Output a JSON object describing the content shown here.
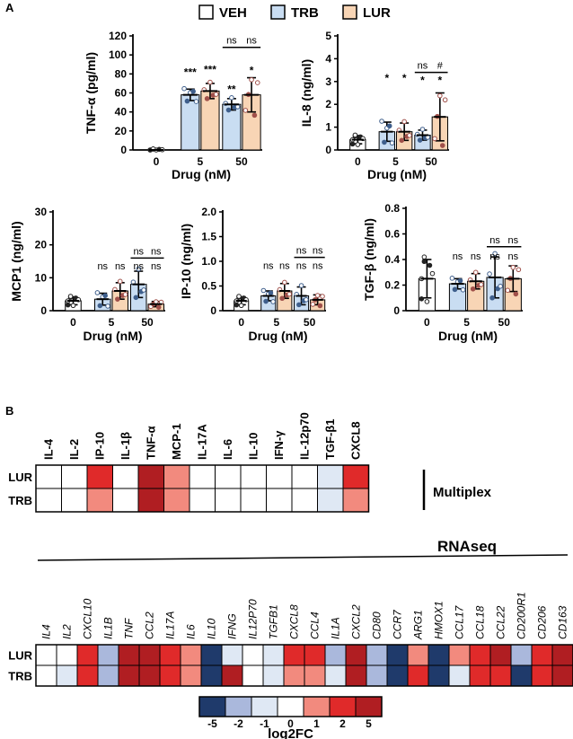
{
  "panel_labels": {
    "a": "A",
    "b": "B"
  },
  "legend": [
    {
      "name": "VEH",
      "color": "#ffffff"
    },
    {
      "name": "TRB",
      "color": "#c9ddf2"
    },
    {
      "name": "LUR",
      "color": "#f8d5b5"
    }
  ],
  "colors": {
    "veh": "#ffffff",
    "trb": "#c9ddf2",
    "lur": "#f8d5b5",
    "dot_trb": "#3f5f8c",
    "dot_lur": "#a0504a"
  },
  "chart_data": [
    {
      "type": "bar",
      "id": "tnf",
      "ylabel": "TNF-α (pg/ml)",
      "xlabel": "Drug (nM)",
      "categories": [
        "0",
        "5",
        "50"
      ],
      "ylim": [
        0,
        120
      ],
      "yticks": [
        "0",
        "20",
        "40",
        "60",
        "80",
        "100",
        "120"
      ],
      "series": [
        {
          "name": "VEH",
          "values": [
            0,
            null,
            null
          ],
          "err": [
            0,
            null,
            null
          ]
        },
        {
          "name": "TRB",
          "values": [
            null,
            58,
            48
          ],
          "err": [
            null,
            6,
            6
          ]
        },
        {
          "name": "LUR",
          "values": [
            null,
            62,
            58
          ],
          "err": [
            null,
            8,
            18
          ]
        }
      ],
      "annotations": [
        {
          "group": 1,
          "series": "TRB",
          "text": "***",
          "y": 78
        },
        {
          "group": 1,
          "series": "LUR",
          "text": "***",
          "y": 81
        },
        {
          "group": 2,
          "series": "TRB",
          "text": "**",
          "y": 60
        },
        {
          "group": 2,
          "series": "LUR",
          "text": "*",
          "y": 80
        }
      ],
      "comparisons": [
        {
          "group": 2,
          "line_y": 108,
          "labels": [
            "ns",
            "ns"
          ]
        }
      ]
    },
    {
      "type": "bar",
      "id": "il8",
      "ylabel": "IL-8 (ng/ml)",
      "xlabel": "Drug (nM)",
      "categories": [
        "0",
        "5",
        "50"
      ],
      "ylim": [
        0,
        5
      ],
      "yticks": [
        "0",
        "1",
        "2",
        "3",
        "4",
        "5"
      ],
      "series": [
        {
          "name": "VEH",
          "values": [
            0.45,
            null,
            null
          ],
          "err": [
            0.18,
            null,
            null
          ]
        },
        {
          "name": "TRB",
          "values": [
            null,
            0.8,
            0.65
          ],
          "err": [
            null,
            0.42,
            0.22
          ]
        },
        {
          "name": "LUR",
          "values": [
            null,
            0.8,
            1.45
          ],
          "err": [
            null,
            0.38,
            1.05
          ]
        }
      ],
      "annotations": [
        {
          "group": 1,
          "series": "TRB",
          "text": "*",
          "y": 3.0
        },
        {
          "group": 1,
          "series": "LUR",
          "text": "*",
          "y": 3.0
        },
        {
          "group": 2,
          "series": "TRB",
          "text": "*",
          "y": 2.9
        },
        {
          "group": 2,
          "series": "LUR",
          "text": "*",
          "y": 2.9
        }
      ],
      "comparisons": [
        {
          "group": 2,
          "line_y": 3.4,
          "labels": [
            "ns",
            "#"
          ]
        }
      ]
    },
    {
      "type": "bar",
      "id": "mcp1",
      "ylabel": "MCP1 (ng/ml)",
      "xlabel": "Drug (nM)",
      "categories": [
        "0",
        "5",
        "50"
      ],
      "ylim": [
        0,
        30
      ],
      "yticks": [
        "0",
        "10",
        "20",
        "30"
      ],
      "series": [
        {
          "name": "VEH",
          "values": [
            3,
            null,
            null
          ],
          "err": [
            1.2,
            null,
            null
          ]
        },
        {
          "name": "TRB",
          "values": [
            null,
            3.5,
            8
          ],
          "err": [
            null,
            1.8,
            4
          ]
        },
        {
          "name": "LUR",
          "values": [
            null,
            6,
            2
          ],
          "err": [
            null,
            2.5,
            0.8
          ]
        }
      ],
      "annotations": [
        {
          "group": 1,
          "series": "TRB",
          "text": "ns",
          "y": 12.5
        },
        {
          "group": 1,
          "series": "LUR",
          "text": "ns",
          "y": 12.5
        },
        {
          "group": 2,
          "series": "TRB",
          "text": "ns",
          "y": 12.5
        },
        {
          "group": 2,
          "series": "LUR",
          "text": "ns",
          "y": 12.5
        }
      ],
      "comparisons": [
        {
          "group": 2,
          "line_y": 16,
          "labels": [
            "ns",
            "ns"
          ]
        }
      ]
    },
    {
      "type": "bar",
      "id": "ip10",
      "ylabel": "IP-10 (ng/ml)",
      "xlabel": "Drug (nM)",
      "categories": [
        "0",
        "5",
        "50"
      ],
      "ylim": [
        0,
        2.0
      ],
      "yticks": [
        "0",
        "0.5",
        "1.0",
        "1.5",
        "2.0"
      ],
      "series": [
        {
          "name": "VEH",
          "values": [
            0.2,
            null,
            null
          ],
          "err": [
            0.08,
            null,
            null
          ]
        },
        {
          "name": "TRB",
          "values": [
            null,
            0.3,
            0.3
          ],
          "err": [
            null,
            0.1,
            0.18
          ]
        },
        {
          "name": "LUR",
          "values": [
            null,
            0.4,
            0.22
          ],
          "err": [
            null,
            0.15,
            0.1
          ]
        }
      ],
      "annotations": [
        {
          "group": 1,
          "series": "TRB",
          "text": "ns",
          "y": 0.85
        },
        {
          "group": 1,
          "series": "LUR",
          "text": "ns",
          "y": 0.85
        },
        {
          "group": 2,
          "series": "TRB",
          "text": "ns",
          "y": 0.85
        },
        {
          "group": 2,
          "series": "LUR",
          "text": "ns",
          "y": 0.85
        }
      ],
      "comparisons": [
        {
          "group": 2,
          "line_y": 1.08,
          "labels": [
            "ns",
            "ns"
          ]
        }
      ]
    },
    {
      "type": "bar",
      "id": "tgfb",
      "ylabel": "TGF-β (ng/ml)",
      "xlabel": "Drug (nM)",
      "categories": [
        "0",
        "5",
        "50"
      ],
      "ylim": [
        0,
        0.8
      ],
      "yticks": [
        "0",
        "0.2",
        "0.4",
        "0.6",
        "0.8"
      ],
      "series": [
        {
          "name": "VEH",
          "values": [
            0.25,
            null,
            null
          ],
          "err": [
            0.15,
            null,
            null
          ]
        },
        {
          "name": "TRB",
          "values": [
            null,
            0.21,
            0.26
          ],
          "err": [
            null,
            0.04,
            0.16
          ]
        },
        {
          "name": "LUR",
          "values": [
            null,
            0.23,
            0.25
          ],
          "err": [
            null,
            0.06,
            0.1
          ]
        }
      ],
      "annotations": [
        {
          "group": 1,
          "series": "TRB",
          "text": "ns",
          "y": 0.4
        },
        {
          "group": 1,
          "series": "LUR",
          "text": "ns",
          "y": 0.4
        },
        {
          "group": 2,
          "series": "TRB",
          "text": "ns",
          "y": 0.4
        },
        {
          "group": 2,
          "series": "LUR",
          "text": "ns",
          "y": 0.4
        }
      ],
      "comparisons": [
        {
          "group": 2,
          "line_y": 0.5,
          "labels": [
            "ns",
            "ns"
          ]
        }
      ]
    },
    {
      "type": "heatmap",
      "id": "multiplex",
      "title": "Multiplex",
      "columns": [
        "IL-4",
        "IL-2",
        "IP-10",
        "IL-1β",
        "TNF-α",
        "MCP-1",
        "IL-17A",
        "IL-6",
        "IL-10",
        "IFN-γ",
        "IL-12p70",
        "TGF-β1",
        "CXCL8"
      ],
      "rows": [
        "LUR",
        "TRB"
      ],
      "values": [
        [
          0,
          0,
          2,
          0,
          5,
          0.5,
          0,
          0,
          0,
          0,
          0,
          -1,
          2
        ],
        [
          0,
          0,
          0.5,
          0,
          5,
          0.5,
          0,
          0,
          0,
          0,
          0,
          -1,
          0.5
        ]
      ]
    },
    {
      "type": "heatmap",
      "id": "rnaseq",
      "title": "RNAseq",
      "columns": [
        "IL4",
        "IL2",
        "CXCL10",
        "IL1B",
        "TNF",
        "CCL2",
        "IL17A",
        "IL6",
        "IL10",
        "IFNG",
        "IL12P70",
        "TGFB1",
        "CXCL8",
        "CCL4",
        "IL1A",
        "CXCL2",
        "CD80",
        "CCR7",
        "ARG1",
        "HMOX1",
        "CCL17",
        "CCL18",
        "CCL22",
        "CD200R1",
        "CD206",
        "CD163"
      ],
      "rows": [
        "LUR",
        "TRB"
      ],
      "values": [
        [
          0,
          0,
          2,
          -2,
          5,
          5,
          2,
          1,
          -5,
          -1,
          0,
          -1,
          2,
          2,
          -2,
          5,
          -2,
          -5,
          1,
          -5,
          1,
          2,
          5,
          -2,
          2,
          5
        ],
        [
          0,
          -1,
          2,
          -2,
          5,
          5,
          2,
          1,
          -5,
          5,
          0,
          -1,
          1,
          0.5,
          -1,
          5,
          -2,
          -5,
          2,
          -5,
          -1,
          2,
          2,
          -5,
          2,
          5
        ]
      ]
    },
    {
      "type": "colorbar",
      "id": "log2fc",
      "label": "log2FC",
      "ticks": [
        "-5",
        "-2",
        "-1",
        "0",
        "1",
        "2",
        "5"
      ],
      "colors": [
        "#1f3a6b",
        "#aab8dc",
        "#dfe8f4",
        "#ffffff",
        "#f28a7e",
        "#e02a2a",
        "#b01e22"
      ]
    }
  ]
}
